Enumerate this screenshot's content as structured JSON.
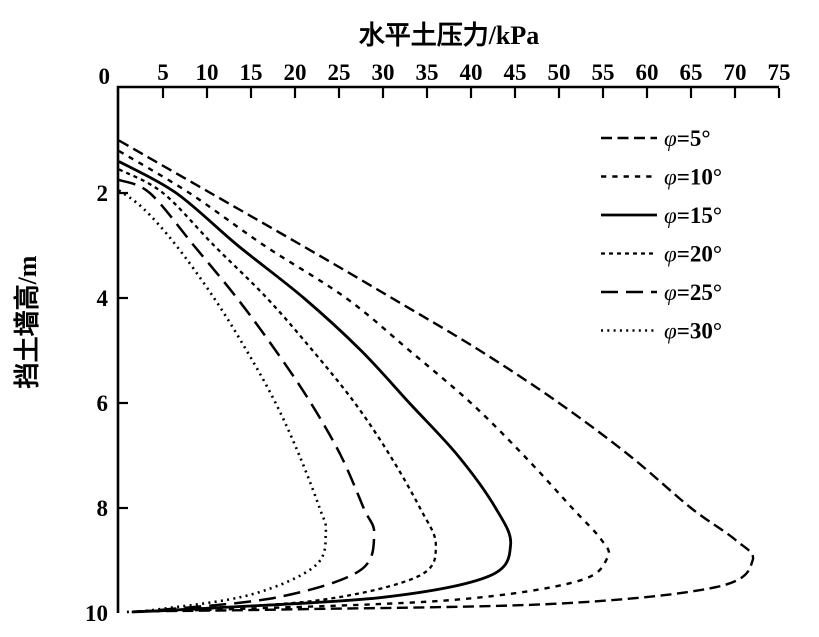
{
  "figure": {
    "background": "#ffffff",
    "ink_color": "#000000"
  },
  "chart_data": {
    "type": "line",
    "title": "水平土压力/kPa",
    "xlabel": "水平土压力/kPa",
    "ylabel": "挡土墙高/m",
    "x_axis": {
      "position": "top",
      "min": 0,
      "max": 75,
      "ticks": [
        5,
        10,
        15,
        20,
        25,
        30,
        35,
        40,
        45,
        50,
        55,
        60,
        65,
        70,
        75
      ],
      "origin_label": "0"
    },
    "y_axis": {
      "position": "left",
      "direction": "down",
      "min": 0,
      "max": 10,
      "ticks": [
        2,
        4,
        6,
        8
      ],
      "end_label": "10",
      "origin_label": "0"
    },
    "grid": false,
    "legend_position": "upper-right-inside",
    "point_format": "[pressure_kPa, wall_height_m]",
    "series": [
      {
        "name": "phi-5",
        "label": "φ=5°",
        "phi_deg": 5,
        "line_style": "dashed",
        "dash": "11 5.5",
        "width": 2.4,
        "color": "#000000",
        "points": [
          [
            0,
            1.0
          ],
          [
            10.4,
            2
          ],
          [
            20.8,
            3
          ],
          [
            31,
            4
          ],
          [
            41,
            5
          ],
          [
            50,
            6
          ],
          [
            58,
            7
          ],
          [
            65,
            8
          ],
          [
            70,
            8.6
          ],
          [
            72,
            9.0
          ],
          [
            68,
            9.5
          ],
          [
            50,
            9.82
          ],
          [
            20,
            9.93
          ],
          [
            2,
            9.97
          ]
        ]
      },
      {
        "name": "phi-10",
        "label": "φ=10°",
        "phi_deg": 10,
        "line_style": "short-dashed",
        "dash": "5.3 6",
        "width": 2.4,
        "color": "#000000",
        "points": [
          [
            0,
            1.2
          ],
          [
            8,
            2
          ],
          [
            16.5,
            3
          ],
          [
            25.8,
            4
          ],
          [
            33,
            5
          ],
          [
            40,
            6
          ],
          [
            46,
            7
          ],
          [
            51.5,
            8
          ],
          [
            54.8,
            8.6
          ],
          [
            55.5,
            8.95
          ],
          [
            52,
            9.4
          ],
          [
            38,
            9.75
          ],
          [
            14,
            9.92
          ],
          [
            1.8,
            9.97
          ]
        ]
      },
      {
        "name": "phi-15",
        "label": "φ=15°",
        "phi_deg": 15,
        "line_style": "solid",
        "dash": "",
        "width": 2.8,
        "color": "#000000",
        "points": [
          [
            0,
            1.4
          ],
          [
            6.5,
            2
          ],
          [
            13.5,
            3
          ],
          [
            21,
            4
          ],
          [
            27.5,
            5
          ],
          [
            33,
            6
          ],
          [
            38.5,
            7
          ],
          [
            42.8,
            8
          ],
          [
            44.5,
            8.7
          ],
          [
            42,
            9.3
          ],
          [
            30,
            9.7
          ],
          [
            11,
            9.9
          ],
          [
            1.5,
            9.98
          ]
        ]
      },
      {
        "name": "phi-20",
        "label": "φ=20°",
        "phi_deg": 20,
        "line_style": "dense-dashed",
        "dash": "4 4",
        "width": 2.3,
        "color": "#000000",
        "points": [
          [
            0,
            1.55
          ],
          [
            5,
            2
          ],
          [
            10.8,
            3
          ],
          [
            16.8,
            4
          ],
          [
            22,
            5
          ],
          [
            26.8,
            6
          ],
          [
            30.8,
            7
          ],
          [
            34.2,
            8
          ],
          [
            36,
            8.7
          ],
          [
            34,
            9.3
          ],
          [
            23,
            9.75
          ],
          [
            7.5,
            9.93
          ],
          [
            1.3,
            9.98
          ]
        ]
      },
      {
        "name": "phi-25",
        "label": "φ=25°",
        "phi_deg": 25,
        "line_style": "long-dashed",
        "dash": "17 8",
        "width": 2.5,
        "color": "#000000",
        "points": [
          [
            0,
            1.75
          ],
          [
            3.5,
            2
          ],
          [
            8.5,
            3
          ],
          [
            13.4,
            4
          ],
          [
            17.8,
            5
          ],
          [
            21.8,
            6
          ],
          [
            25.2,
            7
          ],
          [
            27.8,
            8
          ],
          [
            29,
            8.5
          ],
          [
            27.3,
            9.2
          ],
          [
            18,
            9.7
          ],
          [
            5.5,
            9.93
          ],
          [
            1,
            9.98
          ]
        ]
      },
      {
        "name": "phi-30",
        "label": "φ=30°",
        "phi_deg": 30,
        "line_style": "dotted",
        "dash": "2 4.3",
        "width": 2.6,
        "color": "#000000",
        "points": [
          [
            0,
            1.95
          ],
          [
            2.8,
            2.3
          ],
          [
            6.5,
            3
          ],
          [
            10.8,
            4
          ],
          [
            14.5,
            5
          ],
          [
            17.8,
            6
          ],
          [
            20.5,
            7
          ],
          [
            22.8,
            8
          ],
          [
            23.5,
            8.45
          ],
          [
            22.3,
            9.1
          ],
          [
            15,
            9.65
          ],
          [
            4.5,
            9.93
          ],
          [
            0.8,
            9.98
          ]
        ]
      }
    ]
  }
}
